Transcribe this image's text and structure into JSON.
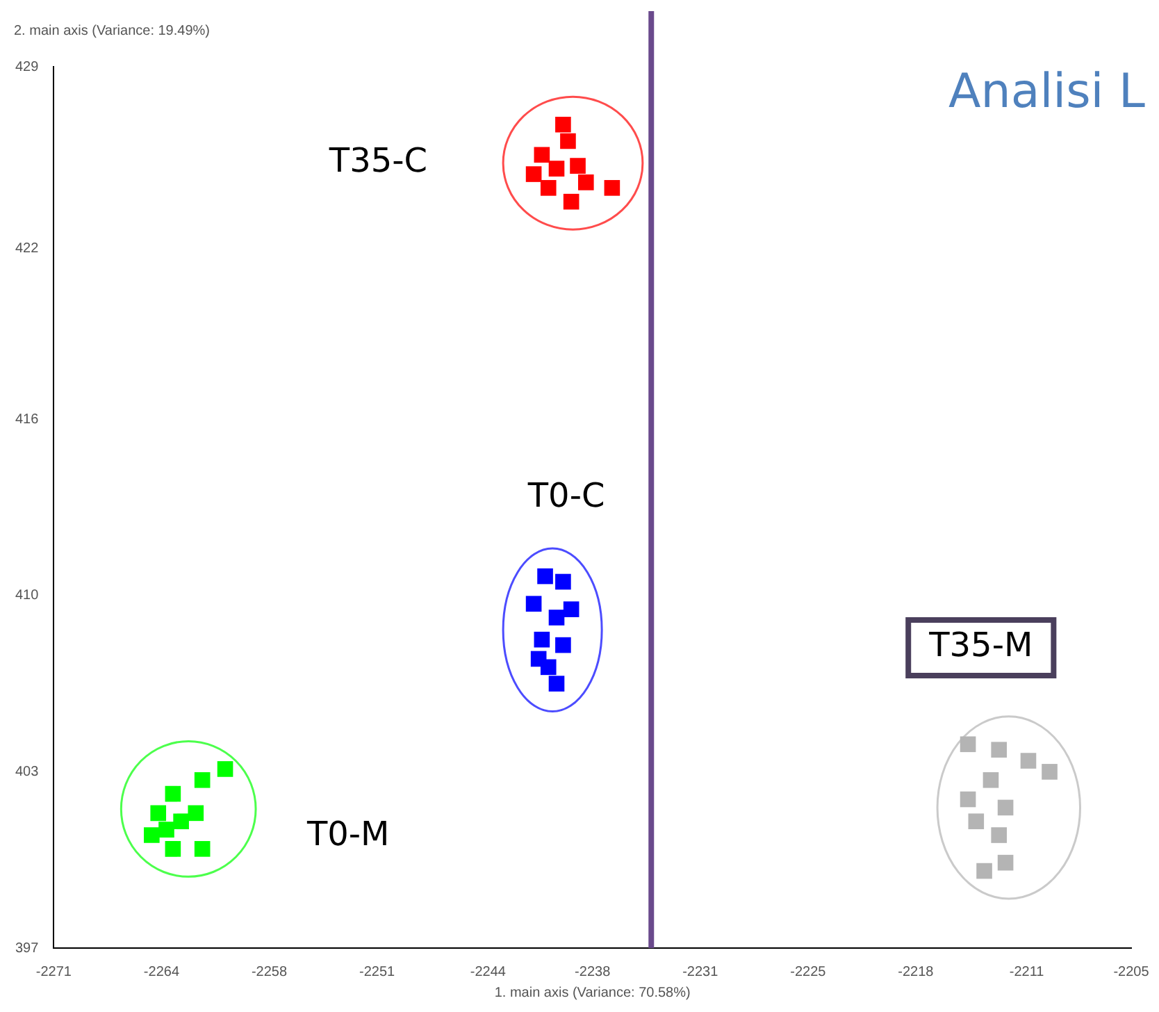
{
  "chart_data": {
    "type": "scatter",
    "title": "Analisi L",
    "xlabel": "1. main axis (Variance: 70.58%)",
    "ylabel": "2. main axis (Variance: 19.49%)",
    "xlim": [
      -2271,
      -2205
    ],
    "ylim": [
      397,
      429
    ],
    "xticks": [
      -2271,
      {
        "value": -2264.4,
        "label": "-2264"
      },
      {
        "value": -2257.8,
        "label": "-2258"
      },
      {
        "value": -2251.2,
        "label": "-2251"
      },
      {
        "value": -2244.4,
        "label": "-2244"
      },
      {
        "value": -2238,
        "label": "-2238"
      },
      {
        "value": -2231.4,
        "label": "-2231"
      },
      {
        "value": -2224.8,
        "label": "-2225"
      },
      {
        "value": -2218.2,
        "label": "-2218"
      },
      {
        "value": -2211.4,
        "label": "-2211"
      },
      -2205
    ],
    "yticks": [
      397,
      {
        "value": 403.4,
        "label": "403"
      },
      {
        "value": 409.8,
        "label": "410"
      },
      {
        "value": 416.2,
        "label": "416"
      },
      {
        "value": 422.4,
        "label": "422"
      },
      429
    ],
    "grid": false,
    "legend": false,
    "marker": "square",
    "ref_lines": [
      {
        "axis": "x",
        "value": -2234.4,
        "color": "#6a4a8c"
      }
    ],
    "series": [
      {
        "name": "T35-C",
        "color": "#ff0000",
        "x": [
          -2239.8,
          -2239.5,
          -2241.1,
          -2240.2,
          -2238.9,
          -2238.4,
          -2240.7,
          -2239.3,
          -2236.8,
          -2241.6
        ],
        "values": [
          426.9,
          426.3,
          425.8,
          425.3,
          425.4,
          424.8,
          424.6,
          424.1,
          424.6,
          425.1
        ]
      },
      {
        "name": "T0-C",
        "color": "#0000ff",
        "x": [
          -2240.9,
          -2239.8,
          -2241.6,
          -2240.2,
          -2239.3,
          -2241.1,
          -2239.8,
          -2240.7,
          -2240.2,
          -2241.3
        ],
        "values": [
          410.5,
          410.3,
          409.5,
          409.0,
          409.3,
          408.2,
          408.0,
          407.2,
          406.6,
          407.5
        ]
      },
      {
        "name": "T0-M",
        "color": "#00ff00",
        "x": [
          -2260.5,
          -2261.9,
          -2263.7,
          -2264.6,
          -2263.2,
          -2265.0,
          -2263.7,
          -2261.9,
          -2262.3,
          -2264.1
        ],
        "values": [
          403.5,
          403.1,
          402.6,
          401.9,
          401.6,
          401.1,
          400.6,
          400.6,
          401.9,
          401.3
        ]
      },
      {
        "name": "T35-M",
        "color": "#b4b4b4",
        "x": [
          -2215.0,
          -2213.1,
          -2211.3,
          -2210.0,
          -2213.6,
          -2212.7,
          -2214.5,
          -2213.1,
          -2214.0,
          -2212.7,
          -2215.0
        ],
        "values": [
          404.4,
          404.2,
          403.8,
          403.4,
          403.1,
          402.1,
          401.6,
          401.1,
          399.8,
          400.1,
          402.4
        ]
      }
    ]
  }
}
